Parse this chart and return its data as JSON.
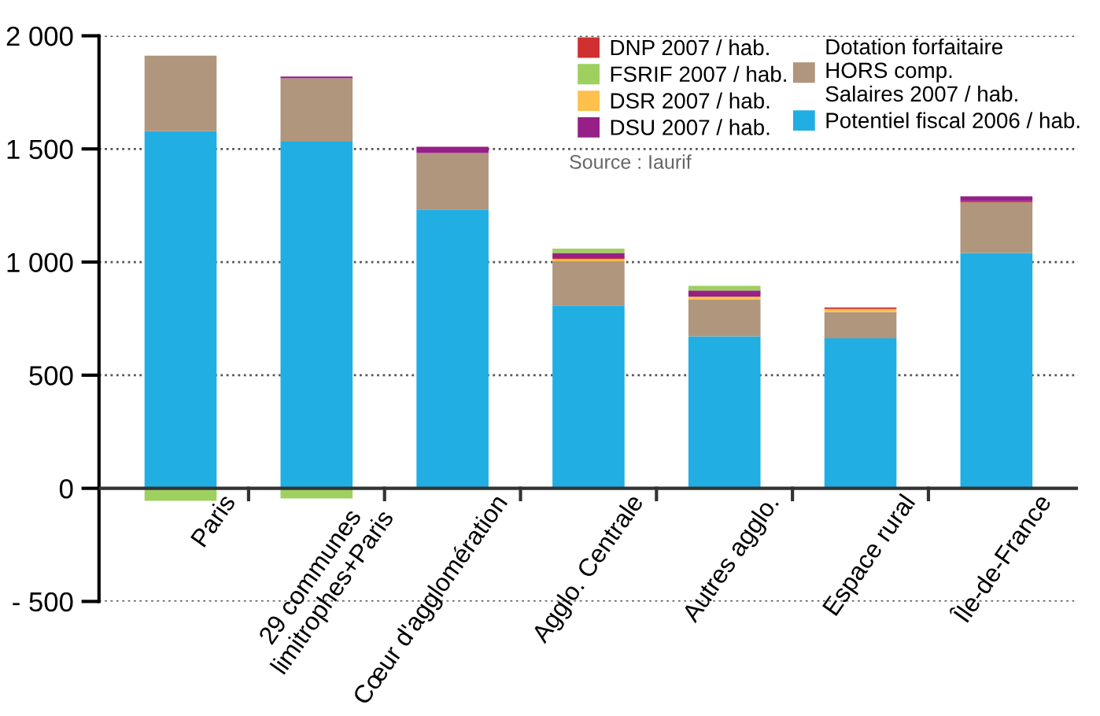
{
  "chart_data": {
    "type": "bar",
    "stacked": true,
    "categories": [
      "Paris",
      "29 communes\nlimitrophes+Paris",
      "Cœur d'agglomération",
      "Agglo. Centrale",
      "Autres agglo.",
      "Espace rural",
      "Île-de-France"
    ],
    "series": [
      {
        "name": "Potentiel fiscal 2006 / hab.",
        "color": "#20aee3",
        "values": [
          1578,
          1532,
          1232,
          808,
          672,
          663,
          1040
        ]
      },
      {
        "name": "Dotation forfaitaire\nHORS comp.\nSalaires 2007 / hab.",
        "color": "#b0967c",
        "values": [
          334,
          280,
          250,
          196,
          161,
          116,
          224
        ]
      },
      {
        "name": "DSR 2007 / hab.",
        "color": "#ffc04c",
        "values": [
          0,
          0,
          0,
          9,
          14,
          13,
          0
        ]
      },
      {
        "name": "DNP 2007 / hab.",
        "color": "#d03030",
        "values": [
          0,
          0,
          0,
          5,
          0,
          7,
          5
        ]
      },
      {
        "name": "DSU 2007 / hab.",
        "color": "#962088",
        "values": [
          0,
          8,
          28,
          22,
          27,
          0,
          22
        ]
      },
      {
        "name": "FSRIF 2007 / hab.",
        "color": "#9ed060",
        "values": [
          -55,
          -45,
          null,
          19,
          21,
          0,
          0
        ]
      }
    ],
    "ylim": [
      -500,
      2000
    ],
    "yticks": [
      {
        "value": -500,
        "label": "- 500"
      },
      0,
      500,
      {
        "value": 1000,
        "label": "1 000"
      },
      {
        "value": 1500,
        "label": "1 500"
      },
      {
        "value": 2000,
        "label": "2 000"
      }
    ],
    "grid": "y",
    "legend": "top right",
    "annotations": [
      "Source : Iaurif"
    ]
  }
}
